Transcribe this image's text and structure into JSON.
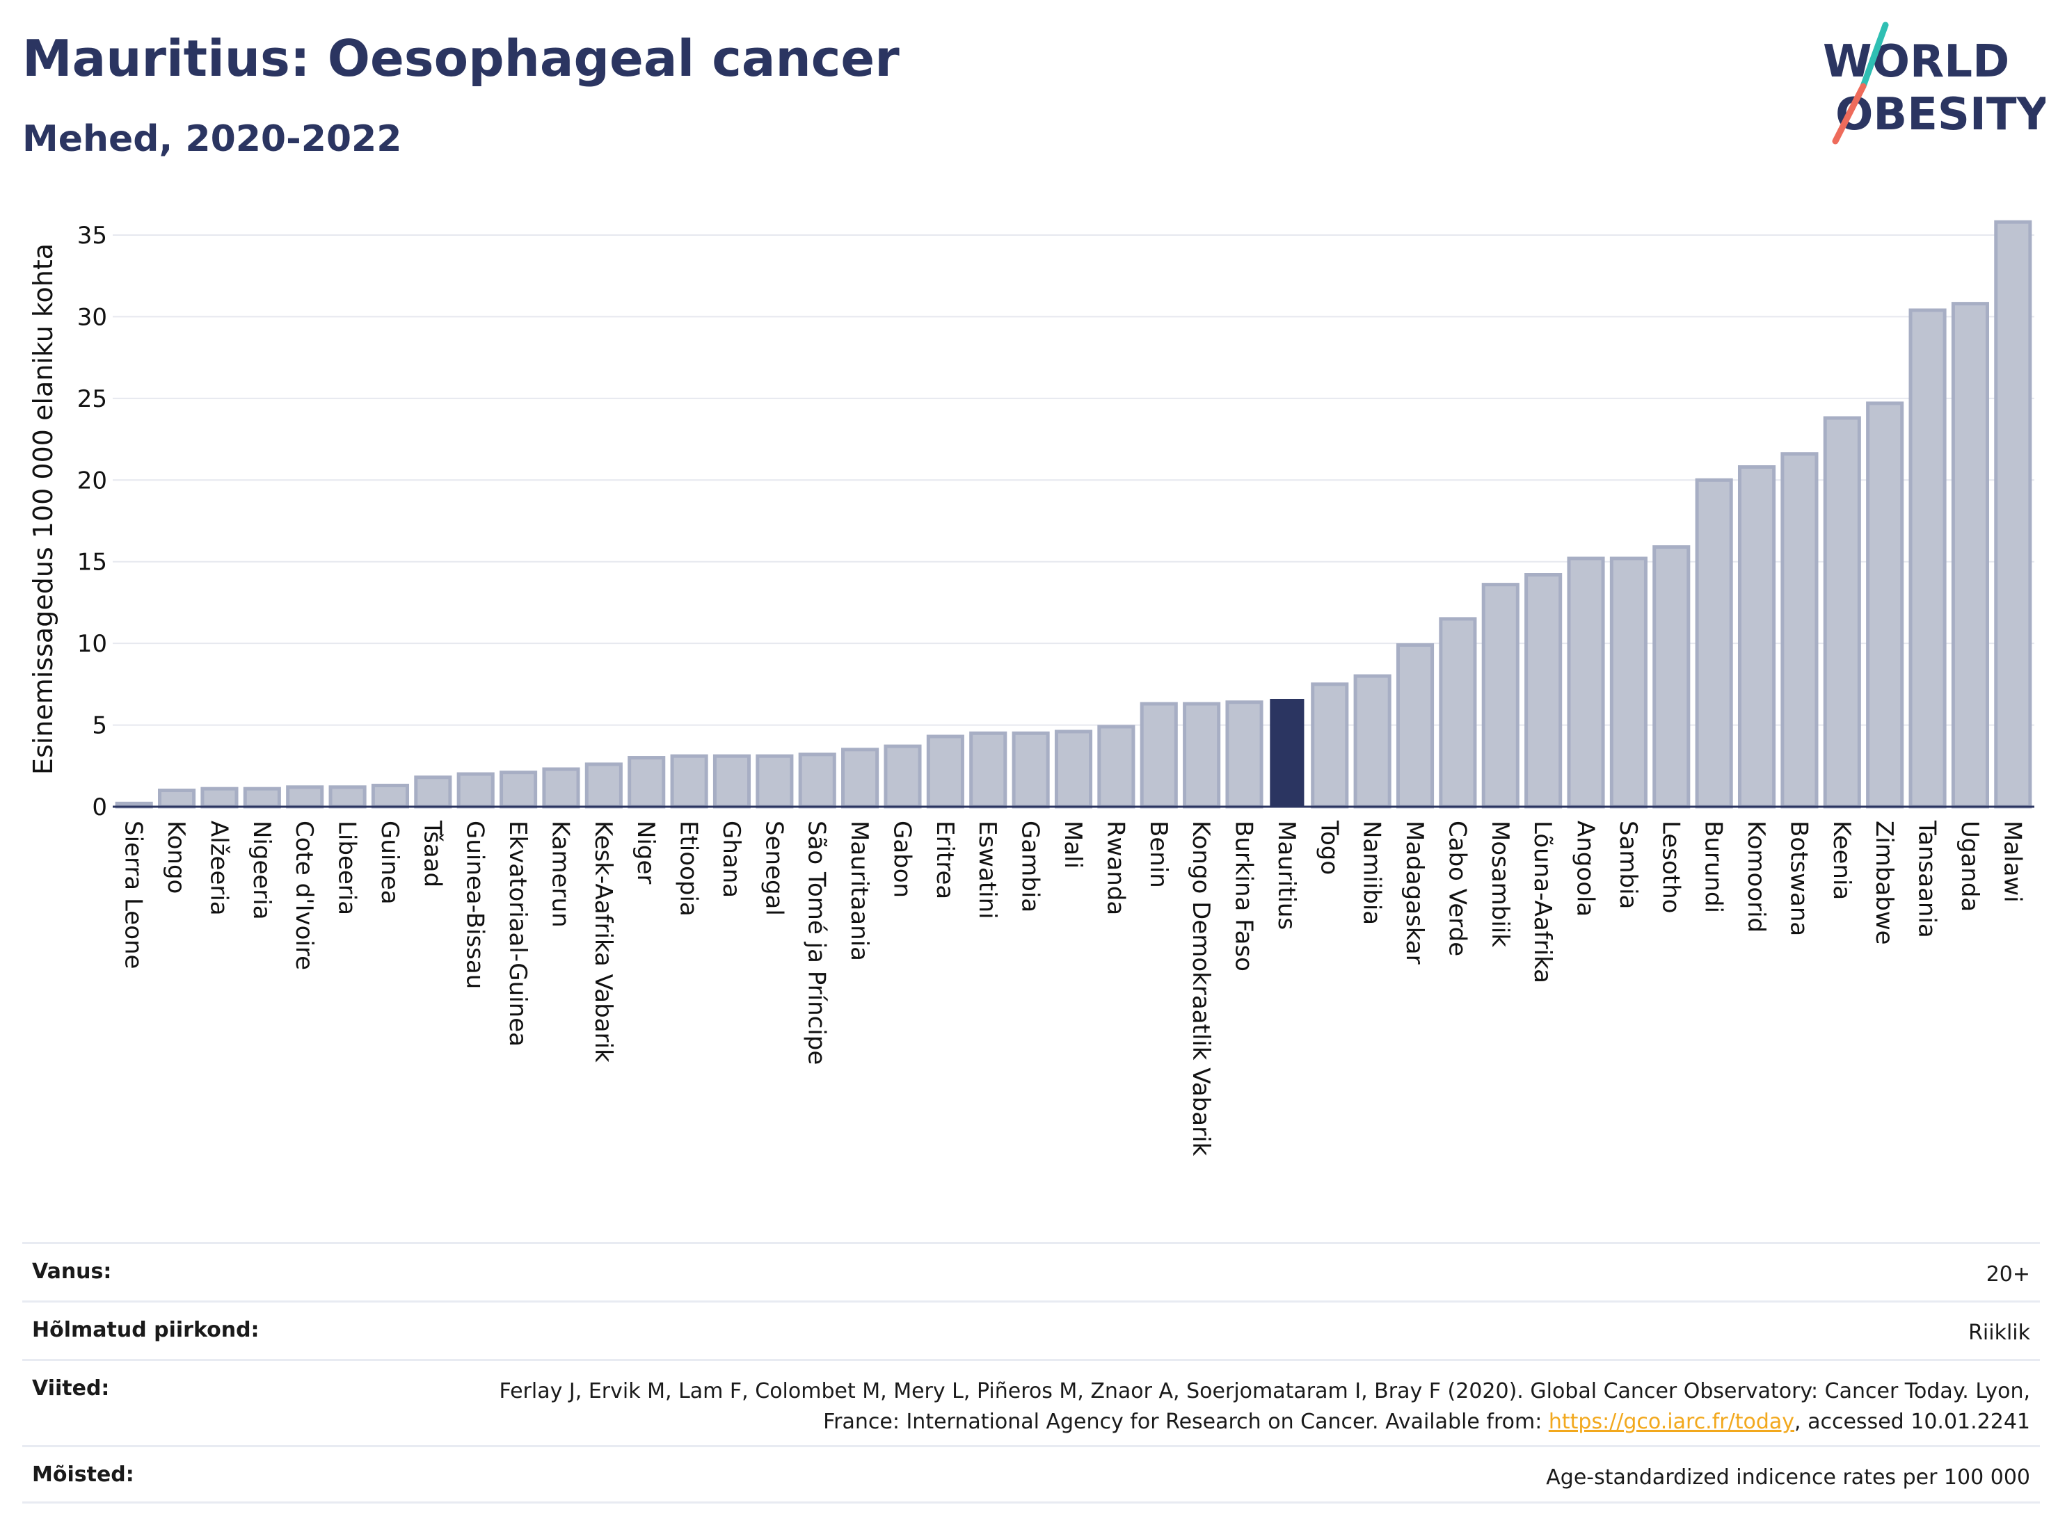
{
  "title": "Mauritius: Oesophageal cancer",
  "subtitle": "Mehed, 2020-2022",
  "logo": {
    "line1": "WORLD",
    "line2": "OBESITY"
  },
  "colors": {
    "bar_fill": "#bec3d1",
    "bar_stroke": "#a7aec4",
    "highlight_fill": "#2b3561",
    "axis": "#2b3561",
    "grid": "#e6e8ef",
    "title": "#2b3561",
    "link": "#f2a81d"
  },
  "chart_data": {
    "type": "bar",
    "ylabel": "Esinemissagedus 100 000 elaniku kohta",
    "ylim": [
      0,
      36
    ],
    "yticks": [
      0,
      5,
      10,
      15,
      20,
      25,
      30,
      35
    ],
    "grid": true,
    "highlight": "Mauritius",
    "categories": [
      "Sierra Leone",
      "Kongo",
      "Alžeeria",
      "Nigeeria",
      "Cote d'Ivoire",
      "Libeeria",
      "Guinea",
      "Tšaad",
      "Guinea-Bissau",
      "Ekvatoriaal-Guinea",
      "Kamerun",
      "Kesk-Aafrika Vabarik",
      "Niger",
      "Etioopia",
      "Ghana",
      "Senegal",
      "São Tomé ja Príncipe",
      "Mauritaania",
      "Gabon",
      "Eritrea",
      "Eswatini",
      "Gambia",
      "Mali",
      "Rwanda",
      "Benin",
      "Kongo Demokraatlik Vabarik",
      "Burkina Faso",
      "Mauritius",
      "Togo",
      "Namiibia",
      "Madagaskar",
      "Cabo Verde",
      "Mosambiik",
      "Lõuna-Aafrika",
      "Angoola",
      "Sambia",
      "Lesotho",
      "Burundi",
      "Komoorid",
      "Botswana",
      "Keenia",
      "Zimbabwe",
      "Tansaania",
      "Uganda",
      "Malawi"
    ],
    "values": [
      0.2,
      1.0,
      1.1,
      1.1,
      1.2,
      1.2,
      1.3,
      1.8,
      2.0,
      2.1,
      2.3,
      2.6,
      3.0,
      3.1,
      3.1,
      3.1,
      3.2,
      3.5,
      3.7,
      4.3,
      4.5,
      4.5,
      4.6,
      4.9,
      6.3,
      6.3,
      6.4,
      6.6,
      7.5,
      8.0,
      9.9,
      11.5,
      13.6,
      14.2,
      15.2,
      15.2,
      15.9,
      20.0,
      20.8,
      21.6,
      23.8,
      24.7,
      30.4,
      30.8,
      35.8
    ]
  },
  "meta": {
    "age_label": "Vanus:",
    "age_value": "20+",
    "region_label": "Hõlmatud piirkond:",
    "region_value": "Riiklik",
    "refs_label": "Viited:",
    "refs_text_before": "Ferlay J, Ervik M, Lam F, Colombet M, Mery L, Piñeros M, Znaor A, Soerjomataram I, Bray F (2020). Global Cancer Observatory: Cancer Today. Lyon, France: International Agency for Research on Cancer. Available from: ",
    "refs_link": "https://gco.iarc.fr/today",
    "refs_text_after": ", accessed 10.01.2241",
    "defs_label": "Mõisted:",
    "defs_value": "Age-standardized indicence rates per 100 000"
  }
}
